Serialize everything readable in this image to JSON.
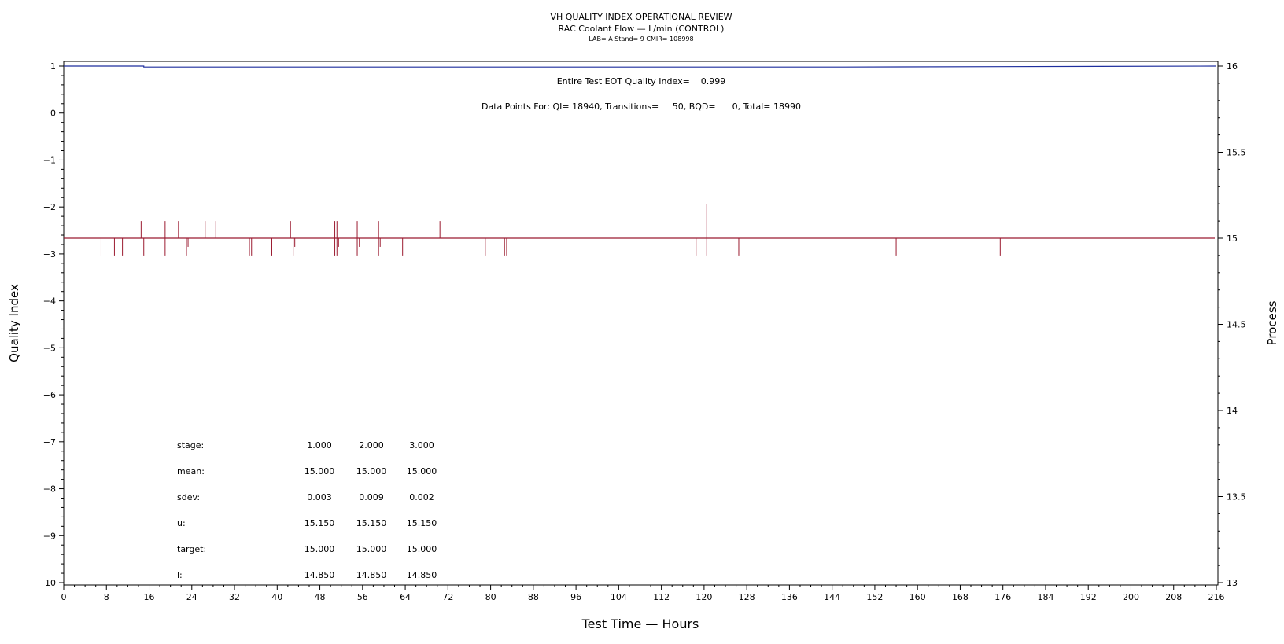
{
  "chart_data": {
    "type": "line",
    "title": "VH QUALITY INDEX OPERATIONAL REVIEW",
    "subtitle": "RAC Coolant Flow — L/min (CONTROL)",
    "subtitle2": "LAB= A Stand= 9 CMIR= 108998",
    "xlabel": "Test Time — Hours",
    "ylabel_left": "Quality Index",
    "ylabel_right": "Process",
    "xlim": [
      0,
      216
    ],
    "ylim_left": [
      -10,
      1
    ],
    "ylim_right": [
      13,
      16
    ],
    "x_ticks": [
      0,
      8,
      16,
      24,
      32,
      40,
      48,
      56,
      64,
      72,
      80,
      88,
      96,
      104,
      112,
      120,
      128,
      136,
      144,
      152,
      160,
      168,
      176,
      184,
      192,
      200,
      208,
      216
    ],
    "y_ticks_left": [
      "1",
      "0",
      "−1",
      "−2",
      "−3",
      "−4",
      "−5",
      "−6",
      "−7",
      "−8",
      "−9",
      "−10"
    ],
    "y_tick_values_left": [
      1,
      0,
      -1,
      -2,
      -3,
      -4,
      -5,
      -6,
      -7,
      -8,
      -9,
      -10
    ],
    "y_ticks_right": [
      "16",
      "15.5",
      "15",
      "14.5",
      "14",
      "13.5",
      "13"
    ],
    "y_tick_values_right": [
      16,
      15.5,
      15,
      14.5,
      14,
      13.5,
      13
    ],
    "annotations": {
      "eot": "Entire Test EOT Quality Index=    0.999",
      "points": "Data Points For: QI= 18940, Transitions=     50, BQD=      0, Total= 18990"
    },
    "series": [
      {
        "role": "quality-index",
        "axis": "left",
        "color": "#1f2f9e",
        "x": [
          0,
          15,
          15,
          146,
          216
        ],
        "y": [
          1.0,
          1.0,
          0.98,
          0.98,
          1.0
        ]
      },
      {
        "role": "process",
        "axis": "right",
        "color": "#9b1b30",
        "baseline": 15.0,
        "spikes": [
          [
            7,
            14.9
          ],
          [
            9.5,
            14.9
          ],
          [
            11,
            14.9
          ],
          [
            14.5,
            15.1
          ],
          [
            15,
            14.9
          ],
          [
            19,
            15.1
          ],
          [
            19,
            14.9
          ],
          [
            21.5,
            15.1
          ],
          [
            23,
            14.9
          ],
          [
            23.3,
            14.95
          ],
          [
            26.5,
            15.1
          ],
          [
            28.5,
            15.1
          ],
          [
            34.8,
            14.9
          ],
          [
            35.2,
            14.9
          ],
          [
            39,
            14.9
          ],
          [
            42.5,
            15.1
          ],
          [
            43,
            14.9
          ],
          [
            43.3,
            14.95
          ],
          [
            50.8,
            15.1
          ],
          [
            50.8,
            14.9
          ],
          [
            51.2,
            15.1
          ],
          [
            51.2,
            14.9
          ],
          [
            51.5,
            14.95
          ],
          [
            55,
            15.1
          ],
          [
            55,
            14.9
          ],
          [
            55.4,
            14.95
          ],
          [
            59,
            15.1
          ],
          [
            59,
            14.9
          ],
          [
            59.3,
            14.95
          ],
          [
            63.5,
            14.9
          ],
          [
            70.5,
            15.1
          ],
          [
            70.7,
            15.05
          ],
          [
            79,
            14.9
          ],
          [
            82.6,
            14.9
          ],
          [
            83,
            14.9
          ],
          [
            118.5,
            14.9
          ],
          [
            120.5,
            15.2
          ],
          [
            120.5,
            14.9
          ],
          [
            126.5,
            14.9
          ],
          [
            156,
            14.9
          ],
          [
            175.5,
            14.9
          ]
        ]
      }
    ],
    "stats_table": {
      "rows": [
        {
          "label": "stage:",
          "values": [
            "1.000",
            "2.000",
            "3.000"
          ]
        },
        {
          "label": "mean:",
          "values": [
            "15.000",
            "15.000",
            "15.000"
          ]
        },
        {
          "label": "sdev:",
          "values": [
            "0.003",
            "0.009",
            "0.002"
          ]
        },
        {
          "label": "u:",
          "values": [
            "15.150",
            "15.150",
            "15.150"
          ]
        },
        {
          "label": "target:",
          "values": [
            "15.000",
            "15.000",
            "15.000"
          ]
        },
        {
          "label": "l:",
          "values": [
            "14.850",
            "14.850",
            "14.850"
          ]
        }
      ]
    }
  }
}
